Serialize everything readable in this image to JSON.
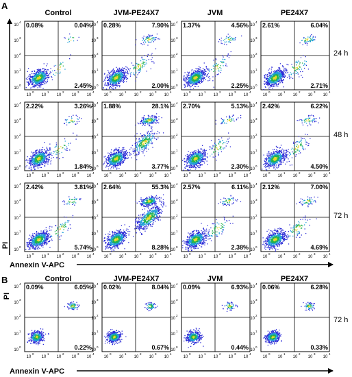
{
  "figure": {
    "columns": [
      "Control",
      "JVM-PE24X7",
      "JVM",
      "PE24X7"
    ],
    "x_axis_label": "Annexin V-APC",
    "y_axis_label": "PI",
    "tick_labels": [
      "0",
      "1",
      "2",
      "3",
      "4"
    ],
    "panel_a": {
      "label": "A",
      "times": [
        "24 h",
        "48 h",
        "72 h"
      ],
      "quadrants": [
        [
          [
            "0.08%",
            "0.04%",
            "2.45%"
          ],
          [
            "0.28%",
            "7.90%",
            "2.00%"
          ],
          [
            "1.37%",
            "4.56%",
            "2.25%"
          ],
          [
            "2.61%",
            "6.04%",
            "2.71%"
          ]
        ],
        [
          [
            "2.22%",
            "3.26%",
            "1.84%"
          ],
          [
            "1.88%",
            "28.1%",
            "3.77%"
          ],
          [
            "2.70%",
            "5.13%",
            "2.30%"
          ],
          [
            "2.42%",
            "6.22%",
            "4.50%"
          ]
        ],
        [
          [
            "2.42%",
            "3.81%",
            "5.74%"
          ],
          [
            "2.64%",
            "55.3%",
            "8.28%"
          ],
          [
            "2.57%",
            "6.11%",
            "2.38%"
          ],
          [
            "2.12%",
            "7.00%",
            "4.69%"
          ]
        ]
      ]
    },
    "panel_b": {
      "label": "B",
      "time": "72 h",
      "quadrants": [
        [
          "0.09%",
          "6.05%",
          "0.22%"
        ],
        [
          "0.02%",
          "8.04%",
          "0.67%"
        ],
        [
          "0.09%",
          "6.93%",
          "0.44%"
        ],
        [
          "0.06%",
          "6.28%",
          "0.33%"
        ]
      ]
    }
  },
  "chart_data": {
    "type": "scatter",
    "title": "",
    "xlabel": "Annexin V-APC",
    "ylabel": "PI",
    "xscale": "log",
    "yscale": "log",
    "xlim": [
      1,
      10000
    ],
    "ylim": [
      1,
      10000
    ],
    "quadrant_order": [
      "upper-left",
      "upper-right",
      "lower-right"
    ],
    "units": "%",
    "panel_a": {
      "conditions": [
        "Control",
        "JVM-PE24X7",
        "JVM",
        "PE24X7"
      ],
      "times": [
        "24 h",
        "48 h",
        "72 h"
      ],
      "values": [
        [
          [
            0.08,
            0.04,
            2.45
          ],
          [
            0.28,
            7.9,
            2.0
          ],
          [
            1.37,
            4.56,
            2.25
          ],
          [
            2.61,
            6.04,
            2.71
          ]
        ],
        [
          [
            2.22,
            3.26,
            1.84
          ],
          [
            1.88,
            28.1,
            3.77
          ],
          [
            2.7,
            5.13,
            2.3
          ],
          [
            2.42,
            6.22,
            4.5
          ]
        ],
        [
          [
            2.42,
            3.81,
            5.74
          ],
          [
            2.64,
            55.3,
            8.28
          ],
          [
            2.57,
            6.11,
            2.38
          ],
          [
            2.12,
            7.0,
            4.69
          ]
        ]
      ]
    },
    "panel_b": {
      "conditions": [
        "Control",
        "JVM-PE24X7",
        "JVM",
        "PE24X7"
      ],
      "time": "72 h",
      "values": [
        [
          0.09,
          6.05,
          0.22
        ],
        [
          0.02,
          8.04,
          0.67
        ],
        [
          0.09,
          6.93,
          0.44
        ],
        [
          0.06,
          6.28,
          0.33
        ]
      ]
    }
  }
}
